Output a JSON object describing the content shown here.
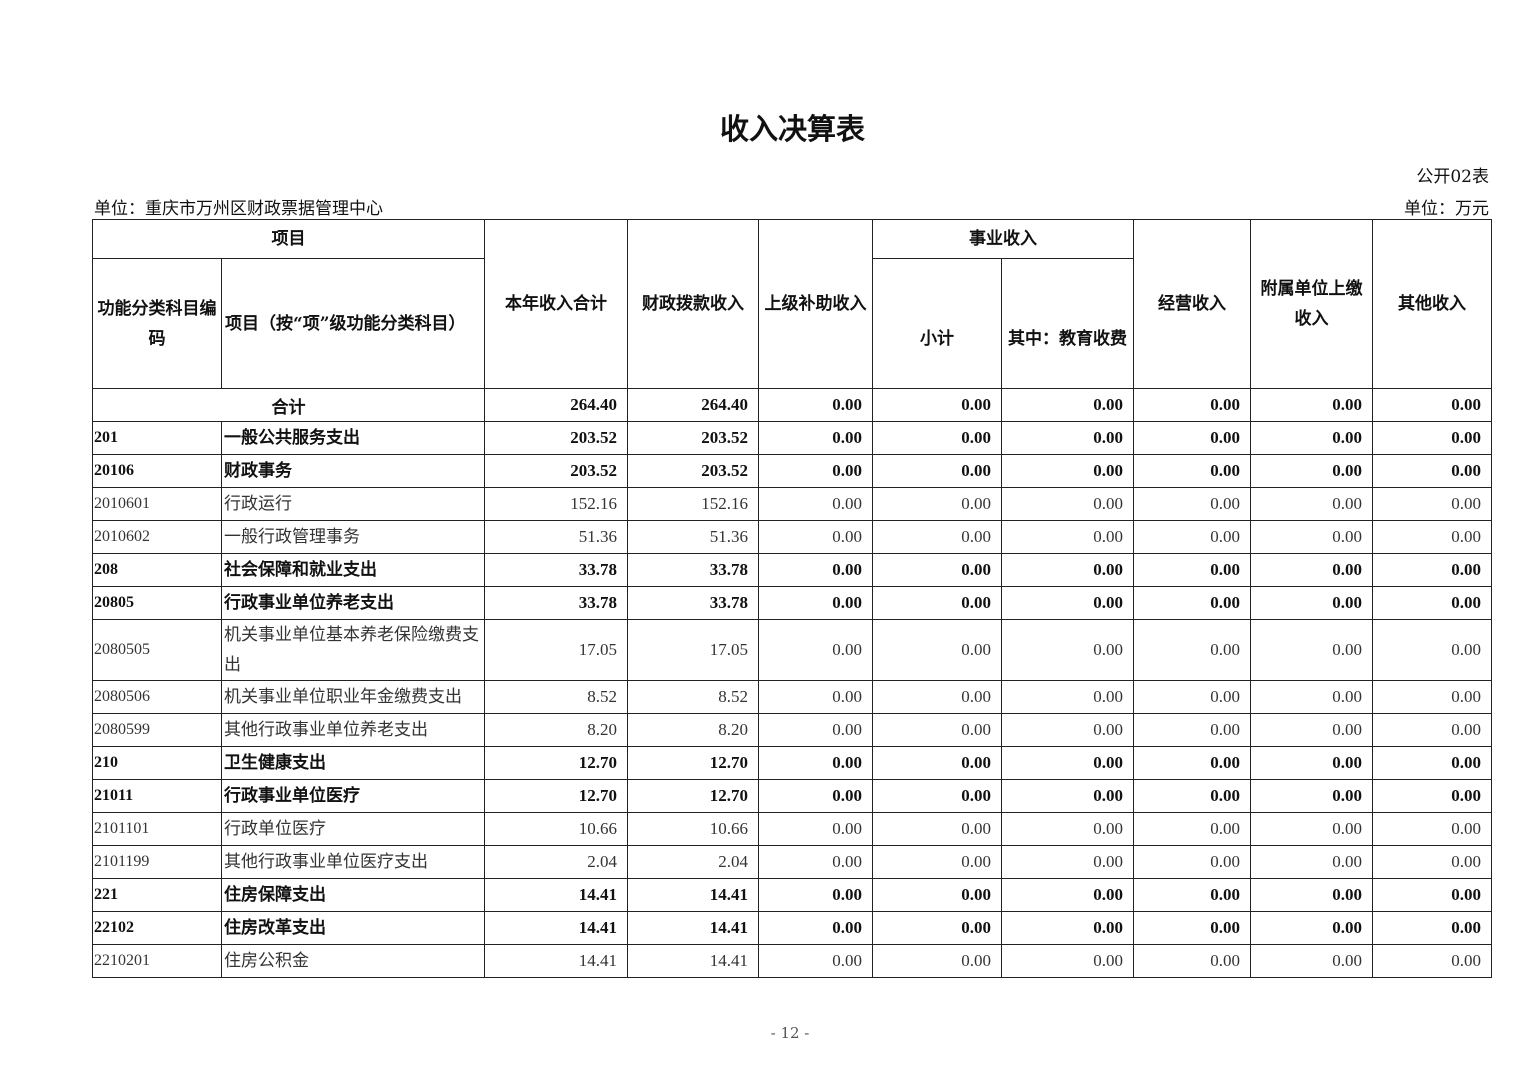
{
  "title": "收入决算表",
  "table_no": "公开02表",
  "unit_org": "单位：重庆市万州区财政票据管理中心",
  "unit_money": "单位：万元",
  "headers": {
    "project": "项目",
    "code": "功能分类科目编码",
    "name": "项目（按“项”级功能分类科目）",
    "total": "本年收入合计",
    "fiscal": "财政拨款收入",
    "superior": "上级补助收入",
    "business": "事业收入",
    "subtotal": "小计",
    "edu": "其中：教育收费",
    "operating": "经营收入",
    "affiliated": "附属单位上缴收入",
    "other": "其他收入"
  },
  "total_row": {
    "label": "合计",
    "values": [
      "264.40",
      "264.40",
      "0.00",
      "0.00",
      "0.00",
      "0.00",
      "0.00",
      "0.00"
    ]
  },
  "rows": [
    {
      "code": "201",
      "name": "一般公共服务支出",
      "values": [
        "203.52",
        "203.52",
        "0.00",
        "0.00",
        "0.00",
        "0.00",
        "0.00",
        "0.00"
      ]
    },
    {
      "code": "20106",
      "name": "财政事务",
      "values": [
        "203.52",
        "203.52",
        "0.00",
        "0.00",
        "0.00",
        "0.00",
        "0.00",
        "0.00"
      ]
    },
    {
      "code": "2010601",
      "name": "行政运行",
      "values": [
        "152.16",
        "152.16",
        "0.00",
        "0.00",
        "0.00",
        "0.00",
        "0.00",
        "0.00"
      ]
    },
    {
      "code": "2010602",
      "name": "一般行政管理事务",
      "values": [
        "51.36",
        "51.36",
        "0.00",
        "0.00",
        "0.00",
        "0.00",
        "0.00",
        "0.00"
      ]
    },
    {
      "code": "208",
      "name": "社会保障和就业支出",
      "values": [
        "33.78",
        "33.78",
        "0.00",
        "0.00",
        "0.00",
        "0.00",
        "0.00",
        "0.00"
      ]
    },
    {
      "code": "20805",
      "name": "行政事业单位养老支出",
      "values": [
        "33.78",
        "33.78",
        "0.00",
        "0.00",
        "0.00",
        "0.00",
        "0.00",
        "0.00"
      ]
    },
    {
      "code": "2080505",
      "name": "机关事业单位基本养老保险缴费支出",
      "values": [
        "17.05",
        "17.05",
        "0.00",
        "0.00",
        "0.00",
        "0.00",
        "0.00",
        "0.00"
      ]
    },
    {
      "code": "2080506",
      "name": "机关事业单位职业年金缴费支出",
      "values": [
        "8.52",
        "8.52",
        "0.00",
        "0.00",
        "0.00",
        "0.00",
        "0.00",
        "0.00"
      ]
    },
    {
      "code": "2080599",
      "name": "其他行政事业单位养老支出",
      "values": [
        "8.20",
        "8.20",
        "0.00",
        "0.00",
        "0.00",
        "0.00",
        "0.00",
        "0.00"
      ]
    },
    {
      "code": "210",
      "name": "卫生健康支出",
      "values": [
        "12.70",
        "12.70",
        "0.00",
        "0.00",
        "0.00",
        "0.00",
        "0.00",
        "0.00"
      ]
    },
    {
      "code": "21011",
      "name": "行政事业单位医疗",
      "values": [
        "12.70",
        "12.70",
        "0.00",
        "0.00",
        "0.00",
        "0.00",
        "0.00",
        "0.00"
      ]
    },
    {
      "code": "2101101",
      "name": "行政单位医疗",
      "values": [
        "10.66",
        "10.66",
        "0.00",
        "0.00",
        "0.00",
        "0.00",
        "0.00",
        "0.00"
      ]
    },
    {
      "code": "2101199",
      "name": "其他行政事业单位医疗支出",
      "values": [
        "2.04",
        "2.04",
        "0.00",
        "0.00",
        "0.00",
        "0.00",
        "0.00",
        "0.00"
      ]
    },
    {
      "code": "221",
      "name": "住房保障支出",
      "values": [
        "14.41",
        "14.41",
        "0.00",
        "0.00",
        "0.00",
        "0.00",
        "0.00",
        "0.00"
      ]
    },
    {
      "code": "22102",
      "name": "住房改革支出",
      "values": [
        "14.41",
        "14.41",
        "0.00",
        "0.00",
        "0.00",
        "0.00",
        "0.00",
        "0.00"
      ]
    },
    {
      "code": "2210201",
      "name": "住房公积金",
      "values": [
        "14.41",
        "14.41",
        "0.00",
        "0.00",
        "0.00",
        "0.00",
        "0.00",
        "0.00"
      ]
    }
  ],
  "page_number": "- 12 -"
}
